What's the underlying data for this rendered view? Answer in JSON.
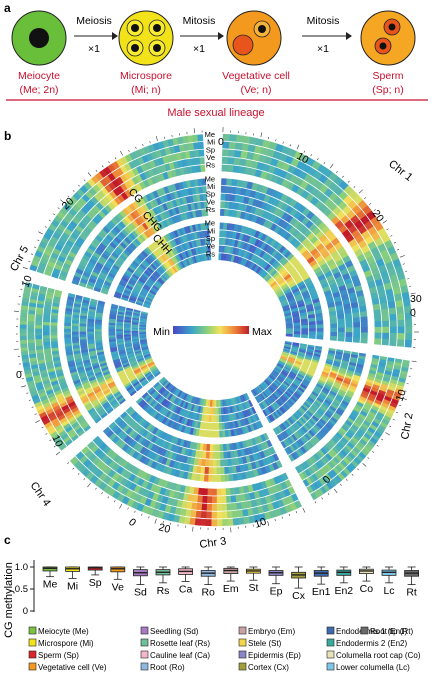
{
  "panel_a": {
    "label": "a",
    "stages": [
      {
        "name": "Meiocyte",
        "sub": "(Me; 2n)",
        "fill": "#6abf3a"
      },
      {
        "name": "Microspore",
        "sub": "(Mi; n)",
        "fill": "#f2e21a"
      },
      {
        "name": "Vegetative cell",
        "sub": "(Ve; n)",
        "fill": "#f39a1e"
      },
      {
        "name": "Sperm",
        "sub": "(Sp; n)",
        "fill": "#f5a623"
      }
    ],
    "transitions": [
      {
        "label": "Meiosis",
        "count": "×1"
      },
      {
        "label": "Mitosis",
        "count": "×1"
      },
      {
        "label": "Mitosis",
        "count": "×1"
      }
    ],
    "lineage_label": "Male sexual lineage",
    "accent": "#c8102e"
  },
  "panel_b": {
    "label": "b",
    "chromosomes": [
      "Chr 1",
      "Chr 2",
      "Chr 3",
      "Chr 4",
      "Chr 5"
    ],
    "contexts": [
      "CG",
      "CHG",
      "CHH"
    ],
    "track_labels": [
      "Me",
      "Mi",
      "Sp",
      "Ve",
      "Rs"
    ],
    "chr1_ticks": [
      "0",
      "10",
      "20",
      "30"
    ],
    "chr2_ticks": [
      "0",
      "10"
    ],
    "chr3_ticks": [
      "0",
      "10",
      "20"
    ],
    "chr4_ticks": [
      "0",
      "10"
    ],
    "chr5_ticks": [
      "0",
      "10",
      "20"
    ],
    "scale_min": "Min",
    "scale_max": "Max"
  },
  "panel_c": {
    "label": "c",
    "ylabel": "CG methylation",
    "yticks": [
      "0",
      "0.5",
      "1.0"
    ],
    "ylim": [
      0,
      1.0
    ],
    "legend": [
      "Meiocyte (Me)",
      "Microspore (Mi)",
      "Sperm (Sp)",
      "Vegetative cell (Ve)",
      "Seedling (Sd)",
      "Rosette leaf (Rs)",
      "Cauline leaf (Ca)",
      "Root (Ro)",
      "Embryo (Em)",
      "Stele (St)",
      "Epidermis (Ep)",
      "Cortex (Cx)",
      "Endodermis 1 (En1)",
      "Endodermis 2 (En2)",
      "Columella root cap (Co)",
      "Lower columella (Lc)",
      "Root tip (Rt)"
    ]
  },
  "chart_data": {
    "type": "box",
    "ylabel": "CG methylation",
    "ylim": [
      0,
      1.0
    ],
    "categories": [
      "Me",
      "Mi",
      "Sp",
      "Ve",
      "Sd",
      "Rs",
      "Ca",
      "Ro",
      "Em",
      "St",
      "Ep",
      "Cx",
      "En1",
      "En2",
      "Co",
      "Lc",
      "Rt"
    ],
    "colors": [
      "#7cc242",
      "#f2e21a",
      "#d9262b",
      "#f39a1e",
      "#a97bc4",
      "#6fbf9a",
      "#f4b6c8",
      "#8fb8e0",
      "#c9a3a3",
      "#f5d64a",
      "#8b86c9",
      "#a3a03b",
      "#3f6bb0",
      "#3aa9a0",
      "#e7e2b8",
      "#7fc7e8",
      "#6b6b6b"
    ],
    "q1": [
      0.91,
      0.9,
      0.93,
      0.89,
      0.8,
      0.82,
      0.83,
      0.79,
      0.85,
      0.86,
      0.81,
      0.75,
      0.79,
      0.81,
      0.85,
      0.81,
      0.79
    ],
    "median": [
      0.97,
      0.96,
      0.98,
      0.96,
      0.87,
      0.88,
      0.9,
      0.86,
      0.92,
      0.91,
      0.87,
      0.82,
      0.86,
      0.88,
      0.91,
      0.88,
      0.86
    ],
    "q3": [
      1.0,
      1.0,
      1.0,
      1.0,
      0.94,
      0.94,
      0.96,
      0.92,
      0.97,
      0.95,
      0.92,
      0.88,
      0.92,
      0.93,
      0.95,
      0.93,
      0.92
    ],
    "wlow": [
      0.78,
      0.74,
      0.82,
      0.72,
      0.6,
      0.64,
      0.67,
      0.6,
      0.68,
      0.7,
      0.62,
      0.52,
      0.61,
      0.64,
      0.68,
      0.64,
      0.6
    ],
    "whigh": [
      1.0,
      1.0,
      1.0,
      1.0,
      1.0,
      1.0,
      1.0,
      1.0,
      1.0,
      1.0,
      1.0,
      1.0,
      1.0,
      1.0,
      1.0,
      1.0,
      1.0
    ]
  }
}
